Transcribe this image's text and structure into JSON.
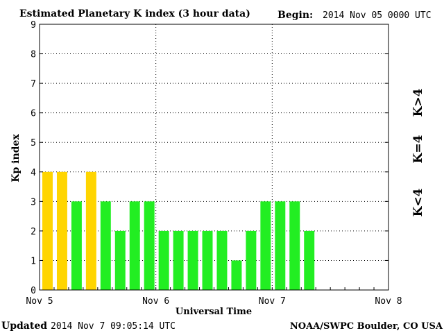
{
  "header": {
    "title": "Estimated Planetary K index (3 hour data)",
    "begin_label": "Begin:",
    "begin_value": "2014 Nov 05 0000 UTC"
  },
  "footer": {
    "updated_label": "Updated",
    "updated_value": "2014 Nov  7 09:05:14 UTC",
    "credit": "NOAA/SWPC Boulder, CO USA"
  },
  "legend": {
    "low": {
      "label": "K<4",
      "color": "#22ee22"
    },
    "mid": {
      "label": "K=4",
      "color": "#ffd500"
    },
    "high": {
      "label": "K>4",
      "color": "#ff2200"
    }
  },
  "chart_data": {
    "type": "bar",
    "ylabel": "Kp index",
    "xlabel": "Universal Time",
    "ylim": [
      0,
      9
    ],
    "yticks": [
      "0",
      "1",
      "2",
      "3",
      "4",
      "5",
      "6",
      "7",
      "8",
      "9"
    ],
    "xticks": [
      "Nov 5",
      "Nov 6",
      "Nov 7",
      "Nov 8"
    ],
    "intervals_total": 24,
    "grid": true,
    "values": [
      4,
      4,
      3,
      4,
      3,
      2,
      3,
      3,
      2,
      2,
      2,
      2,
      2,
      1,
      2,
      3,
      3,
      3,
      2
    ]
  }
}
